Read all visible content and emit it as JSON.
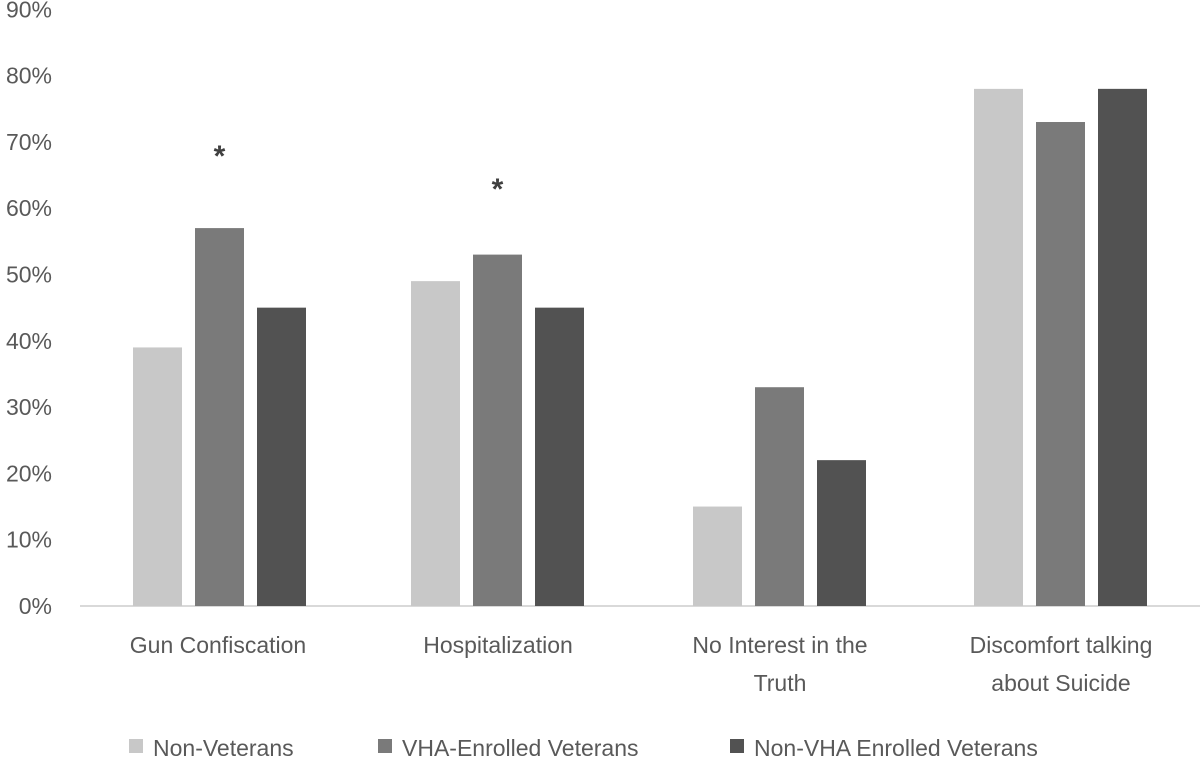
{
  "chart_data": {
    "type": "bar",
    "title": "",
    "xlabel": "",
    "ylabel": "",
    "ylim": [
      0,
      90
    ],
    "yticks": [
      "0%",
      "10%",
      "20%",
      "30%",
      "40%",
      "50%",
      "60%",
      "70%",
      "80%",
      "90%"
    ],
    "grid": false,
    "legend_position": "bottom",
    "categories": [
      [
        "Gun Confiscation"
      ],
      [
        "Hospitalization"
      ],
      [
        "No Interest in the",
        "Truth"
      ],
      [
        "Discomfort talking",
        "about Suicide"
      ]
    ],
    "series": [
      {
        "name": "Non-Veterans",
        "color": "#c8c8c8",
        "values": [
          39,
          49,
          15,
          78
        ]
      },
      {
        "name": "VHA-Enrolled Veterans",
        "color": "#7a7a7a",
        "values": [
          57,
          53,
          33,
          73
        ]
      },
      {
        "name": "Non-VHA Enrolled Veterans",
        "color": "#525252",
        "values": [
          45,
          45,
          22,
          78
        ]
      }
    ],
    "annotations": [
      {
        "text": "*",
        "category_index": 0,
        "series_index": 1,
        "value": 70
      },
      {
        "text": "*",
        "category_index": 1,
        "series_index": 1,
        "value": 65
      }
    ]
  }
}
